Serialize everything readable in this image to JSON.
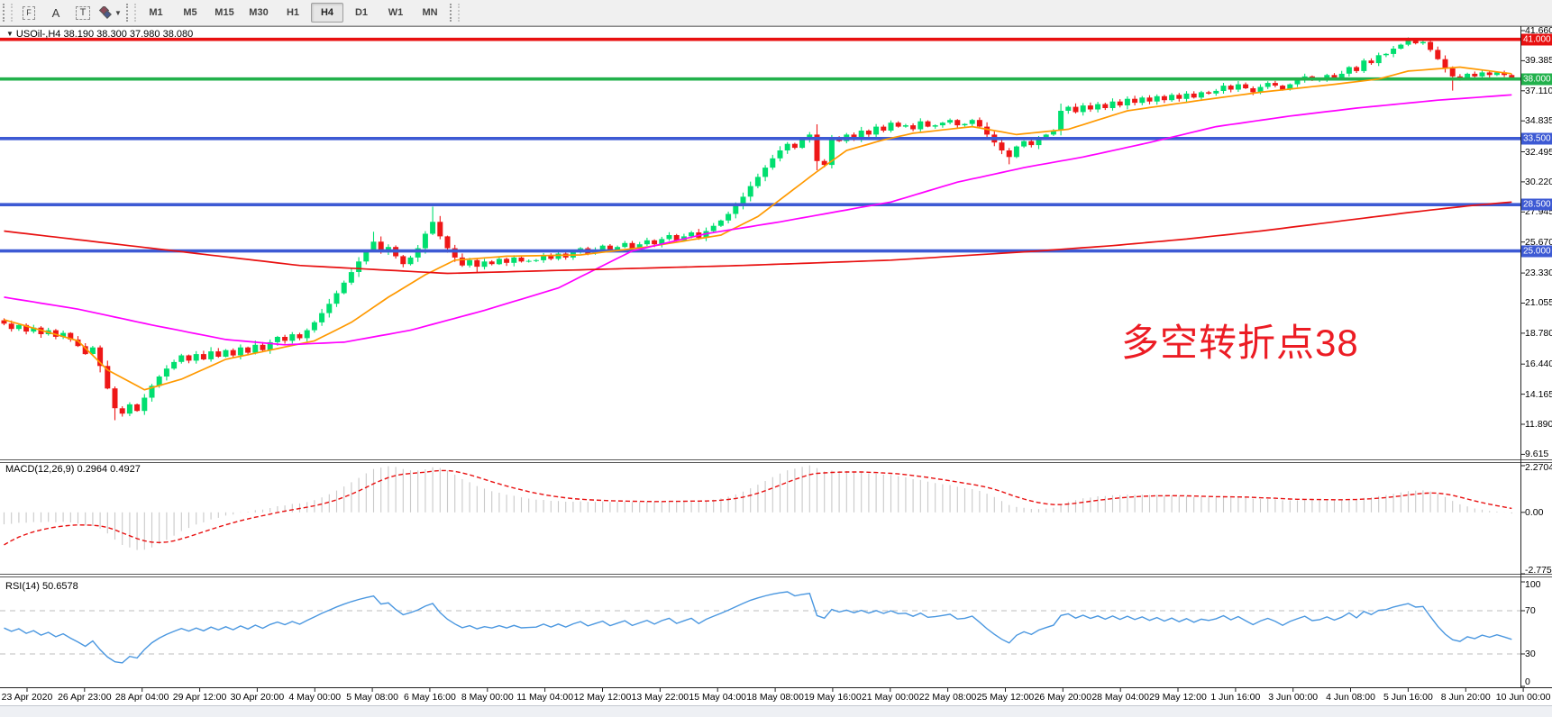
{
  "toolbar": {
    "tools": [
      {
        "name": "fibonacci-tool-button",
        "label": "F",
        "style": "dashbox"
      },
      {
        "name": "text-label-tool-button",
        "label": "A",
        "style": "plain"
      },
      {
        "name": "text-box-tool-button",
        "label": "T",
        "style": "dashbox-big"
      },
      {
        "name": "shapes-tool-button",
        "label": "",
        "style": "shapes",
        "has_dropdown": true
      }
    ],
    "timeframes": [
      "M1",
      "M5",
      "M15",
      "M30",
      "H1",
      "H4",
      "D1",
      "W1",
      "MN"
    ],
    "active_timeframe": "H4"
  },
  "chart_header": {
    "dropdown_glyph": "▼",
    "symbol_line": "USOil-,H4 38.190 38.300 37.980 38.080"
  },
  "indicators": {
    "macd_label": "MACD(12,26,9) 0.2964 0.4927",
    "rsi_label": "RSI(14) 50.6578"
  },
  "annotation": {
    "text": "多空转折点38",
    "color": "#ec1c24"
  },
  "axes": {
    "price_ticks": [
      "41.660",
      "39.385",
      "37.110",
      "34.835",
      "32.495",
      "30.220",
      "27.945",
      "25.670",
      "23.330",
      "21.055",
      "18.780",
      "16.440",
      "14.165",
      "11.890",
      "9.615"
    ],
    "macd_ticks": [
      "2.2704",
      "0.00",
      "-2.7759"
    ],
    "rsi_ticks": [
      "100",
      "70",
      "30",
      "0"
    ],
    "time_ticks": [
      "23 Apr 2020",
      "26 Apr 23:00",
      "28 Apr 04:00",
      "29 Apr 12:00",
      "30 Apr 20:00",
      "4 May 00:00",
      "5 May 08:00",
      "6 May 16:00",
      "8 May 00:00",
      "11 May 04:00",
      "12 May 12:00",
      "13 May 22:00",
      "15 May 04:00",
      "18 May 08:00",
      "19 May 16:00",
      "21 May 00:00",
      "22 May 08:00",
      "25 May 12:00",
      "26 May 20:00",
      "28 May 04:00",
      "29 May 12:00",
      "1 Jun 16:00",
      "3 Jun 00:00",
      "4 Jun 08:00",
      "5 Jun 16:00",
      "8 Jun 20:00",
      "10 Jun 00:00"
    ]
  },
  "chart_data": {
    "type": "candlestick",
    "symbol": "USOil",
    "timeframe": "H4",
    "quote": {
      "open": 38.19,
      "high": 38.3,
      "low": 37.98,
      "close": 38.08
    },
    "bars": 205,
    "price_view_range": [
      9.25,
      42.07
    ],
    "colors": {
      "up": "#00df6f",
      "down": "#ee1717",
      "hline_red": "#e81010",
      "hline_green": "#22b14c",
      "hline_blue": "#3d5ad4",
      "ma_fast": "#ff9900",
      "ma_medium": "#ff00ff",
      "ma_slow": "#e81010",
      "macd_hist": "#c9c9c9",
      "macd_signal": "#e81010",
      "rsi_line": "#4a97e0",
      "rsi_level": "#c9c9c9"
    },
    "horizontal_lines": [
      {
        "price": 41.0,
        "label": "41.000",
        "color": "#e81010"
      },
      {
        "price": 38.0,
        "label": "38.000",
        "color": "#22b14c"
      },
      {
        "price": 33.5,
        "label": "33.500",
        "color": "#3d5ad4"
      },
      {
        "price": 28.5,
        "label": "28.500",
        "color": "#3d5ad4"
      },
      {
        "price": 25.0,
        "label": "25.000",
        "color": "#3d5ad4"
      }
    ],
    "close_path_anchors": [
      [
        0,
        19.5
      ],
      [
        1,
        19.1
      ],
      [
        2,
        19.4
      ],
      [
        3,
        18.9
      ],
      [
        4,
        19.2
      ],
      [
        5,
        18.7
      ],
      [
        6,
        19.0
      ],
      [
        7,
        18.5
      ],
      [
        8,
        18.8
      ],
      [
        9,
        18.3
      ],
      [
        10,
        17.8
      ],
      [
        11,
        17.2
      ],
      [
        12,
        17.7
      ],
      [
        13,
        16.3
      ],
      [
        14,
        14.6
      ],
      [
        15,
        13.1
      ],
      [
        16,
        12.7
      ],
      [
        17,
        13.4
      ],
      [
        18,
        12.9
      ],
      [
        19,
        13.9
      ],
      [
        20,
        14.8
      ],
      [
        21,
        15.5
      ],
      [
        22,
        16.1
      ],
      [
        23,
        16.6
      ],
      [
        24,
        17.1
      ],
      [
        25,
        16.7
      ],
      [
        26,
        17.2
      ],
      [
        27,
        16.8
      ],
      [
        28,
        17.4
      ],
      [
        29,
        17.0
      ],
      [
        30,
        17.5
      ],
      [
        31,
        17.1
      ],
      [
        32,
        17.7
      ],
      [
        33,
        17.3
      ],
      [
        34,
        17.9
      ],
      [
        35,
        17.5
      ],
      [
        36,
        18.1
      ],
      [
        37,
        18.5
      ],
      [
        38,
        18.2
      ],
      [
        39,
        18.7
      ],
      [
        40,
        18.4
      ],
      [
        41,
        19.0
      ],
      [
        42,
        19.6
      ],
      [
        43,
        20.3
      ],
      [
        44,
        21.0
      ],
      [
        45,
        21.8
      ],
      [
        46,
        22.6
      ],
      [
        47,
        23.4
      ],
      [
        48,
        24.2
      ],
      [
        49,
        25.0
      ],
      [
        50,
        25.7
      ],
      [
        51,
        24.9
      ],
      [
        52,
        25.3
      ],
      [
        53,
        24.6
      ],
      [
        54,
        24.0
      ],
      [
        55,
        24.5
      ],
      [
        56,
        25.2
      ],
      [
        57,
        26.3
      ],
      [
        58,
        27.2
      ],
      [
        59,
        26.1
      ],
      [
        60,
        25.2
      ],
      [
        61,
        24.5
      ],
      [
        62,
        23.9
      ],
      [
        63,
        24.3
      ],
      [
        64,
        23.8
      ],
      [
        65,
        24.2
      ],
      [
        66,
        24.0
      ],
      [
        67,
        24.4
      ],
      [
        68,
        24.1
      ],
      [
        69,
        24.5
      ],
      [
        70,
        24.2
      ],
      [
        72,
        24.3
      ],
      [
        73,
        24.7
      ],
      [
        74,
        24.4
      ],
      [
        75,
        24.8
      ],
      [
        76,
        24.5
      ],
      [
        77,
        24.9
      ],
      [
        78,
        25.2
      ],
      [
        79,
        24.8
      ],
      [
        80,
        25.1
      ],
      [
        81,
        25.4
      ],
      [
        82,
        25.0
      ],
      [
        83,
        25.3
      ],
      [
        84,
        25.6
      ],
      [
        85,
        25.2
      ],
      [
        86,
        25.5
      ],
      [
        87,
        25.8
      ],
      [
        88,
        25.5
      ],
      [
        89,
        25.9
      ],
      [
        90,
        26.2
      ],
      [
        91,
        25.8
      ],
      [
        92,
        26.1
      ],
      [
        93,
        26.4
      ],
      [
        94,
        26.0
      ],
      [
        95,
        26.5
      ],
      [
        96,
        26.9
      ],
      [
        97,
        27.3
      ],
      [
        98,
        27.8
      ],
      [
        99,
        28.4
      ],
      [
        100,
        29.1
      ],
      [
        101,
        29.9
      ],
      [
        102,
        30.6
      ],
      [
        103,
        31.3
      ],
      [
        104,
        32.0
      ],
      [
        105,
        32.6
      ],
      [
        106,
        33.1
      ],
      [
        107,
        32.8
      ],
      [
        108,
        33.4
      ],
      [
        109,
        33.8
      ],
      [
        110,
        31.8
      ],
      [
        111,
        31.5
      ],
      [
        112,
        33.6
      ],
      [
        113,
        33.3
      ],
      [
        114,
        33.8
      ],
      [
        115,
        33.5
      ],
      [
        116,
        34.1
      ],
      [
        117,
        33.8
      ],
      [
        118,
        34.4
      ],
      [
        119,
        34.1
      ],
      [
        120,
        34.7
      ],
      [
        121,
        34.4
      ],
      [
        122,
        34.5
      ],
      [
        123,
        34.2
      ],
      [
        124,
        34.8
      ],
      [
        125,
        34.4
      ],
      [
        126,
        34.5
      ],
      [
        127,
        34.7
      ],
      [
        128,
        34.9
      ],
      [
        129,
        34.5
      ],
      [
        130,
        34.6
      ],
      [
        131,
        34.9
      ],
      [
        132,
        34.4
      ],
      [
        133,
        33.8
      ],
      [
        134,
        33.2
      ],
      [
        135,
        32.6
      ],
      [
        136,
        32.1
      ],
      [
        137,
        32.9
      ],
      [
        138,
        33.3
      ],
      [
        139,
        33.0
      ],
      [
        140,
        33.5
      ],
      [
        141,
        33.8
      ],
      [
        142,
        34.1
      ],
      [
        143,
        35.6
      ],
      [
        144,
        35.9
      ],
      [
        145,
        35.5
      ],
      [
        146,
        36.0
      ],
      [
        147,
        35.7
      ],
      [
        148,
        36.1
      ],
      [
        149,
        35.8
      ],
      [
        150,
        36.3
      ],
      [
        151,
        36.0
      ],
      [
        152,
        36.5
      ],
      [
        153,
        36.2
      ],
      [
        154,
        36.6
      ],
      [
        155,
        36.3
      ],
      [
        156,
        36.7
      ],
      [
        157,
        36.4
      ],
      [
        158,
        36.8
      ],
      [
        159,
        36.5
      ],
      [
        160,
        36.9
      ],
      [
        161,
        36.6
      ],
      [
        162,
        37.0
      ],
      [
        163,
        36.9
      ],
      [
        164,
        37.1
      ],
      [
        165,
        37.5
      ],
      [
        166,
        37.2
      ],
      [
        167,
        37.6
      ],
      [
        168,
        37.3
      ],
      [
        169,
        37.0
      ],
      [
        170,
        37.4
      ],
      [
        171,
        37.7
      ],
      [
        172,
        37.5
      ],
      [
        173,
        37.2
      ],
      [
        174,
        37.6
      ],
      [
        175,
        37.9
      ],
      [
        176,
        38.2
      ],
      [
        177,
        37.9
      ],
      [
        178,
        38.0
      ],
      [
        179,
        38.3
      ],
      [
        180,
        38.1
      ],
      [
        181,
        38.4
      ],
      [
        182,
        38.9
      ],
      [
        183,
        38.6
      ],
      [
        184,
        39.4
      ],
      [
        185,
        39.2
      ],
      [
        186,
        39.8
      ],
      [
        187,
        39.9
      ],
      [
        188,
        40.3
      ],
      [
        189,
        40.6
      ],
      [
        190,
        40.9
      ],
      [
        191,
        40.7
      ],
      [
        192,
        40.8
      ],
      [
        193,
        40.2
      ],
      [
        194,
        39.5
      ],
      [
        195,
        38.8
      ],
      [
        196,
        38.2
      ],
      [
        197,
        38.0
      ],
      [
        198,
        38.4
      ],
      [
        199,
        38.2
      ],
      [
        200,
        38.5
      ],
      [
        201,
        38.3
      ],
      [
        202,
        38.5
      ],
      [
        203,
        38.3
      ],
      [
        204,
        38.08
      ]
    ],
    "wick_overrides": [
      [
        15,
        "low",
        12.2
      ],
      [
        50,
        "high",
        26.45
      ],
      [
        58,
        "high",
        28.35
      ],
      [
        64,
        "low",
        23.3
      ],
      [
        110,
        "low",
        31.1
      ],
      [
        136,
        "low",
        31.55
      ],
      [
        190,
        "high",
        41.15
      ],
      [
        192,
        "high",
        41.05
      ],
      [
        196,
        "low",
        37.12
      ]
    ],
    "moving_averages": [
      {
        "name": "fast-ma-orange",
        "color": "#ff9900",
        "anchors": [
          [
            0,
            19.8
          ],
          [
            10,
            18.2
          ],
          [
            14,
            16.0
          ],
          [
            19,
            14.5
          ],
          [
            24,
            15.3
          ],
          [
            30,
            16.8
          ],
          [
            36,
            17.5
          ],
          [
            42,
            18.2
          ],
          [
            47,
            19.6
          ],
          [
            52,
            21.5
          ],
          [
            57,
            23.2
          ],
          [
            61,
            24.3
          ],
          [
            68,
            24.6
          ],
          [
            78,
            24.7
          ],
          [
            87,
            25.3
          ],
          [
            97,
            26.2
          ],
          [
            102,
            27.6
          ],
          [
            106,
            29.3
          ],
          [
            110,
            31.0
          ],
          [
            114,
            32.6
          ],
          [
            119,
            33.4
          ],
          [
            123,
            33.9
          ],
          [
            131,
            34.4
          ],
          [
            137,
            33.8
          ],
          [
            144,
            34.2
          ],
          [
            152,
            35.6
          ],
          [
            162,
            36.4
          ],
          [
            170,
            37.0
          ],
          [
            180,
            37.6
          ],
          [
            186,
            38.0
          ],
          [
            190,
            38.6
          ],
          [
            197,
            38.9
          ],
          [
            204,
            38.4
          ]
        ]
      },
      {
        "name": "medium-ma-magenta",
        "color": "#ff00ff",
        "anchors": [
          [
            0,
            21.5
          ],
          [
            10,
            20.6
          ],
          [
            20,
            19.4
          ],
          [
            30,
            18.3
          ],
          [
            38,
            17.9
          ],
          [
            46,
            18.1
          ],
          [
            55,
            19.0
          ],
          [
            65,
            20.5
          ],
          [
            75,
            22.2
          ],
          [
            85,
            25.0
          ],
          [
            95,
            26.3
          ],
          [
            105,
            27.2
          ],
          [
            110,
            27.7
          ],
          [
            120,
            28.7
          ],
          [
            129,
            30.2
          ],
          [
            138,
            31.3
          ],
          [
            146,
            32.1
          ],
          [
            155,
            33.2
          ],
          [
            164,
            34.4
          ],
          [
            174,
            35.2
          ],
          [
            183,
            35.8
          ],
          [
            194,
            36.4
          ],
          [
            204,
            36.8
          ]
        ]
      },
      {
        "name": "slow-ma-red",
        "color": "#e81010",
        "anchors": [
          [
            0,
            26.5
          ],
          [
            20,
            25.2
          ],
          [
            40,
            23.9
          ],
          [
            60,
            23.3
          ],
          [
            80,
            23.6
          ],
          [
            100,
            23.9
          ],
          [
            120,
            24.3
          ],
          [
            140,
            25.0
          ],
          [
            150,
            25.4
          ],
          [
            160,
            25.9
          ],
          [
            170,
            26.5
          ],
          [
            180,
            27.2
          ],
          [
            190,
            27.9
          ],
          [
            198,
            28.4
          ],
          [
            204,
            28.7
          ]
        ]
      }
    ],
    "macd": {
      "params": [
        12,
        26,
        9
      ],
      "value": 0.2964,
      "signal": 0.4927,
      "ylim": [
        -2.7759,
        2.2704
      ]
    },
    "rsi": {
      "period": 14,
      "value": 50.6578,
      "levels": [
        70,
        30
      ],
      "ylim": [
        0,
        100
      ]
    }
  }
}
